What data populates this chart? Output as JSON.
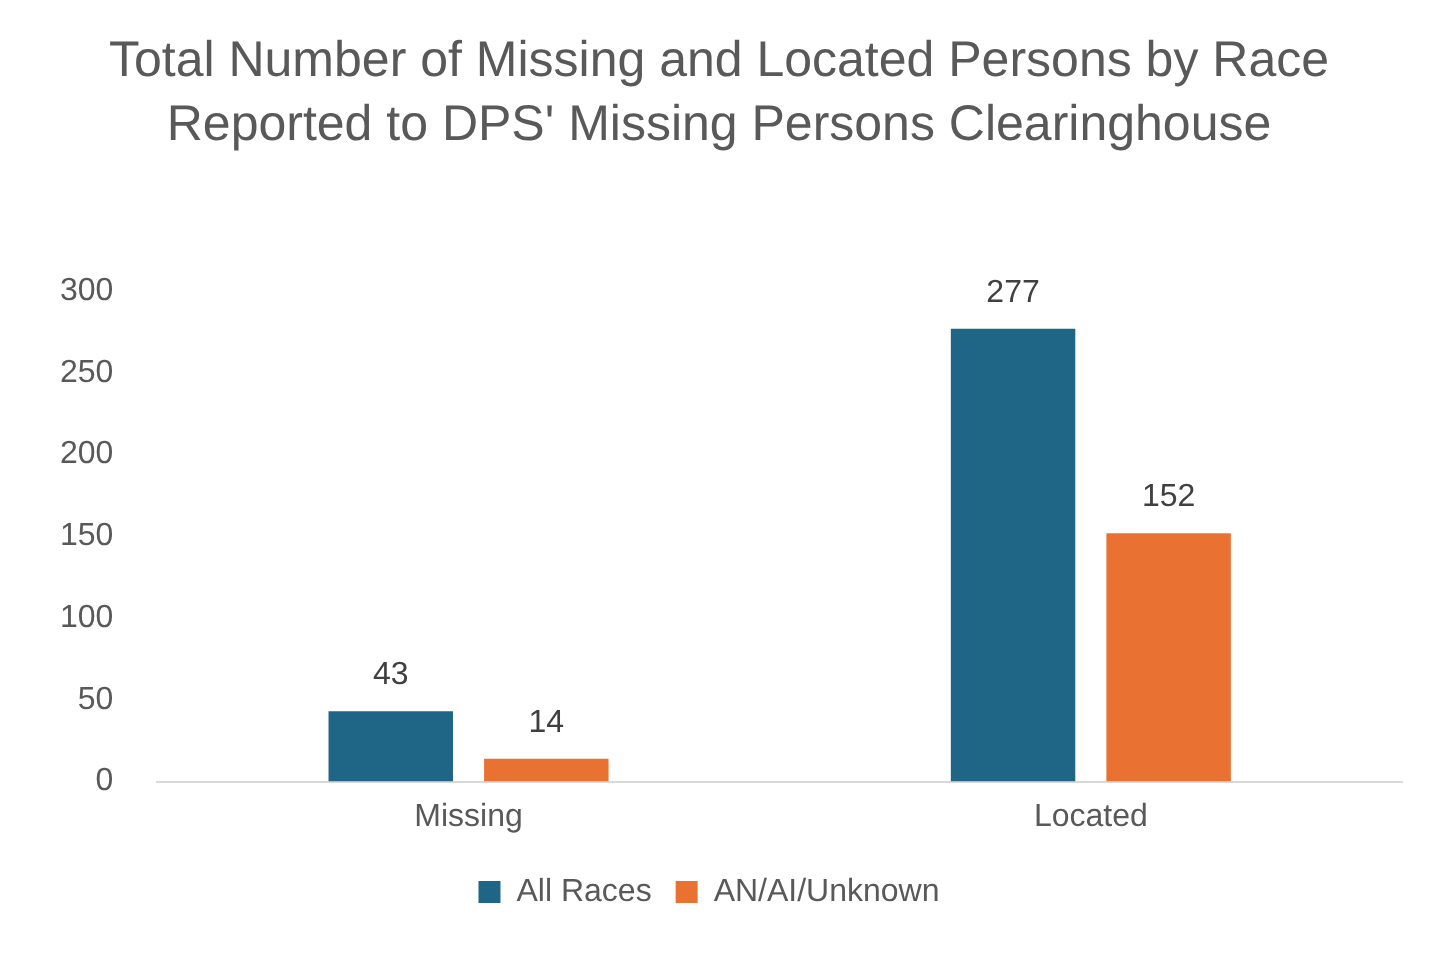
{
  "chart_data": {
    "type": "bar",
    "title": "Total Number of Missing and Located Persons by Race Reported to DPS' Missing Persons Clearinghouse",
    "categories": [
      "Missing",
      "Located"
    ],
    "series": [
      {
        "name": "All Races",
        "color": "#1f6586",
        "values": [
          43,
          277
        ]
      },
      {
        "name": "AN/AI/Unknown",
        "color": "#e97132",
        "values": [
          14,
          152
        ]
      }
    ],
    "ylim": [
      0,
      300
    ],
    "yticks": [
      0,
      50,
      100,
      150,
      200,
      250,
      300
    ],
    "grid": false,
    "legend": "bottom",
    "data_labels": true
  }
}
